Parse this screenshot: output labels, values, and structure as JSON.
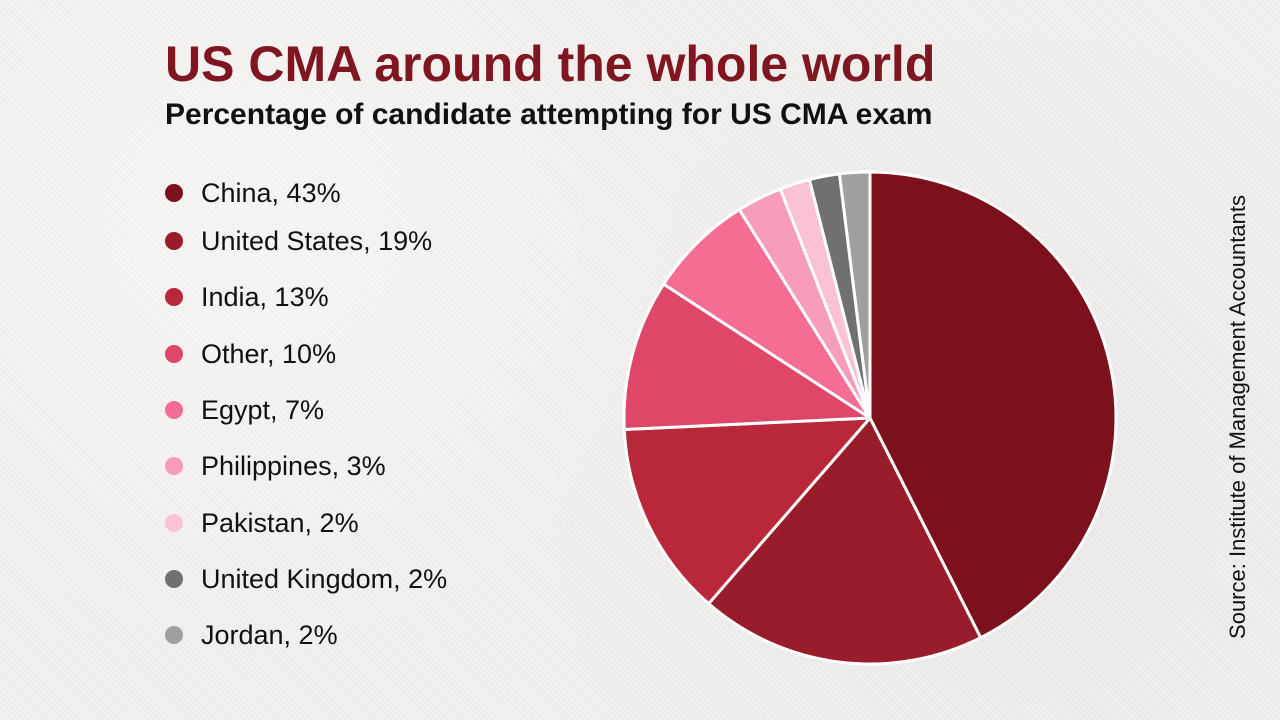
{
  "header": {
    "title": "US CMA around the whole world",
    "subtitle": "Percentage of candidate attempting for US CMA exam"
  },
  "source": "Source: Institute of Management Accountants",
  "chart_data": {
    "type": "pie",
    "title": "US CMA around the whole world",
    "subtitle": "Percentage of candidate attempting for US CMA exam",
    "categories": [
      "China",
      "United States",
      "India",
      "Other",
      "Egypt",
      "Philippines",
      "Pakistan",
      "United Kingdom",
      "Jordan"
    ],
    "values": [
      43,
      19,
      13,
      10,
      7,
      3,
      2,
      2,
      2
    ],
    "legend_labels": [
      "China, 43%",
      "United States, 19%",
      "India, 13%",
      "Other, 10%",
      "Egypt, 7%",
      "Philippines, 3%",
      "Pakistan, 2%",
      "United Kingdom, 2%",
      "Jordan, 2%"
    ],
    "colors": [
      "#7c111d",
      "#991c2b",
      "#b8283a",
      "#df4768",
      "#f56d93",
      "#f79dbb",
      "#fbc2d5",
      "#707070",
      "#9f9f9f"
    ],
    "legend_position": "left",
    "grid": false
  }
}
